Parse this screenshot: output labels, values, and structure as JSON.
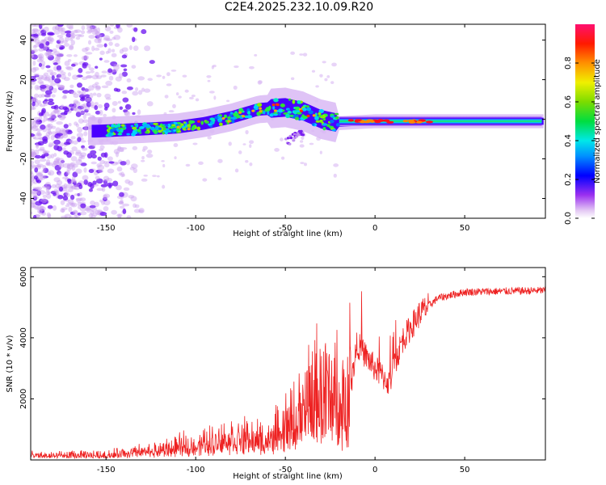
{
  "title": "C2E4.2025.232.10.09.R20",
  "chart_data": [
    {
      "type": "heatmap",
      "name": "spectrogram",
      "xlabel": "Height of straight line (km)",
      "ylabel": "Frequency (Hz)",
      "xlim": [
        -192,
        95
      ],
      "ylim": [
        -50,
        48
      ],
      "xticks": [
        -150,
        -100,
        -50,
        0,
        50
      ],
      "yticks": [
        -40,
        -20,
        0,
        20,
        40
      ],
      "colorbar": {
        "label": "Normalized spectral amplitude",
        "range": [
          0,
          1
        ],
        "ticks": [
          0,
          0.2,
          0.4,
          0.6,
          0.8
        ],
        "tick_labels": [
          "0.0",
          "0.2",
          "0.4",
          "0.6",
          "0.8"
        ]
      },
      "ridge": [
        {
          "x": -155,
          "f": -6
        },
        {
          "x": -130,
          "f": -5
        },
        {
          "x": -110,
          "f": -4
        },
        {
          "x": -95,
          "f": -2
        },
        {
          "x": -80,
          "f": 1
        },
        {
          "x": -65,
          "f": 5
        },
        {
          "x": -50,
          "f": 6
        },
        {
          "x": -40,
          "f": 4
        },
        {
          "x": -30,
          "f": 0
        },
        {
          "x": -20,
          "f": -2
        },
        {
          "x": 0,
          "f": -1
        },
        {
          "x": 50,
          "f": -1
        },
        {
          "x": 93,
          "f": -1
        }
      ]
    },
    {
      "type": "line",
      "name": "snr",
      "xlabel": "Height of straight line (km)",
      "ylabel": "SNR (10 * v/v)",
      "xlim": [
        -192,
        95
      ],
      "ylim": [
        0,
        6300
      ],
      "xticks": [
        -150,
        -100,
        -50,
        0,
        50
      ],
      "yticks": [
        2000,
        4000,
        6000
      ],
      "color": "#ee2222",
      "envelope": [
        {
          "x": -192,
          "v": 150
        },
        {
          "x": -150,
          "v": 180
        },
        {
          "x": -120,
          "v": 350
        },
        {
          "x": -100,
          "v": 550
        },
        {
          "x": -80,
          "v": 800
        },
        {
          "x": -60,
          "v": 700
        },
        {
          "x": -45,
          "v": 1400
        },
        {
          "x": -35,
          "v": 2200
        },
        {
          "x": -25,
          "v": 2500
        },
        {
          "x": -15,
          "v": 1800
        },
        {
          "x": -10,
          "v": 3800
        },
        {
          "x": 0,
          "v": 3000
        },
        {
          "x": 8,
          "v": 2500
        },
        {
          "x": 15,
          "v": 3900
        },
        {
          "x": 25,
          "v": 4800
        },
        {
          "x": 35,
          "v": 5300
        },
        {
          "x": 50,
          "v": 5500
        },
        {
          "x": 95,
          "v": 5550
        }
      ]
    }
  ]
}
